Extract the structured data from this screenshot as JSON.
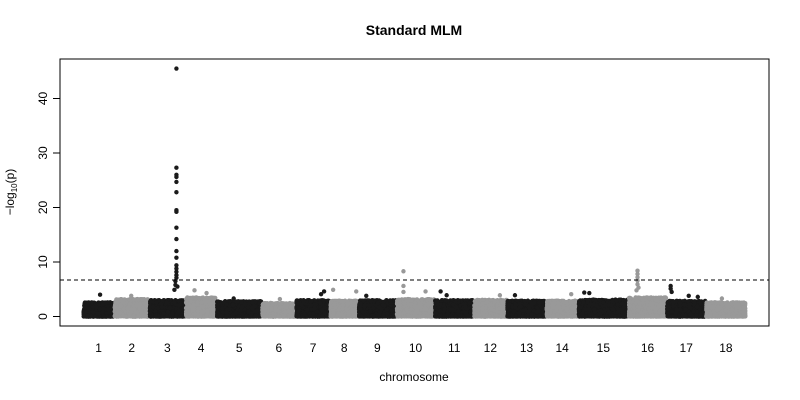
{
  "chart_data": {
    "type": "scatter",
    "subtype": "manhattan",
    "title": "Standard MLM",
    "xlabel": "chromosome",
    "ylabel": {
      "prefix": "−log",
      "subscript": "10",
      "suffix": "(p)"
    },
    "ylim": [
      0,
      47
    ],
    "yticks": [
      0,
      10,
      20,
      30,
      40
    ],
    "grid": false,
    "legend": "none",
    "threshold": {
      "value": 6.7,
      "style": "dashed",
      "color": "#000000"
    },
    "colors": {
      "odd": "#1a1a1a",
      "even": "#999999",
      "threshold": "#000000"
    },
    "chromosomes": [
      {
        "label": "1",
        "start": 0,
        "end": 31,
        "base_max": 2.6,
        "peaks": [
          [
            17,
            4.0
          ]
        ]
      },
      {
        "label": "2",
        "start": 31,
        "end": 66,
        "base_max": 3.2,
        "peaks": [
          [
            48,
            3.8
          ]
        ]
      },
      {
        "label": "3",
        "start": 66,
        "end": 102,
        "base_max": 3.0,
        "peaks": [
          [
            93,
            45.5
          ],
          [
            93,
            27.3
          ],
          [
            93,
            26.0
          ],
          [
            93,
            25.6
          ],
          [
            93,
            24.7
          ],
          [
            93,
            22.8
          ],
          [
            93,
            19.5
          ],
          [
            93,
            19.2
          ],
          [
            93,
            16.3
          ],
          [
            93,
            14.2
          ],
          [
            93,
            12.0
          ],
          [
            93,
            10.8
          ],
          [
            93,
            9.4
          ],
          [
            93,
            8.8
          ],
          [
            93,
            8.2
          ],
          [
            93,
            7.6
          ],
          [
            93,
            7.1
          ],
          [
            92,
            6.5
          ],
          [
            92,
            5.8
          ],
          [
            94,
            5.5
          ],
          [
            91,
            4.9
          ]
        ]
      },
      {
        "label": "4",
        "start": 102,
        "end": 133,
        "base_max": 3.5,
        "peaks": [
          [
            111,
            4.8
          ],
          [
            123,
            4.3
          ]
        ]
      },
      {
        "label": "5",
        "start": 133,
        "end": 178,
        "base_max": 2.8,
        "peaks": [
          [
            150,
            3.3
          ]
        ]
      },
      {
        "label": "6",
        "start": 178,
        "end": 212,
        "base_max": 2.5,
        "peaks": [
          [
            196,
            3.2
          ]
        ]
      },
      {
        "label": "7",
        "start": 212,
        "end": 246,
        "base_max": 3.0,
        "peaks": [
          [
            240,
            4.6
          ],
          [
            237,
            4.1
          ]
        ]
      },
      {
        "label": "8",
        "start": 246,
        "end": 274,
        "base_max": 2.9,
        "peaks": [
          [
            249,
            4.9
          ],
          [
            272,
            4.6
          ]
        ]
      },
      {
        "label": "9",
        "start": 274,
        "end": 312,
        "base_max": 3.0,
        "peaks": [
          [
            282,
            3.8
          ]
        ]
      },
      {
        "label": "10",
        "start": 312,
        "end": 350,
        "base_max": 3.2,
        "peaks": [
          [
            319,
            8.3
          ],
          [
            319,
            5.6
          ],
          [
            319,
            4.5
          ],
          [
            341,
            4.6
          ]
        ]
      },
      {
        "label": "11",
        "start": 350,
        "end": 389,
        "base_max": 3.0,
        "peaks": [
          [
            356,
            4.6
          ],
          [
            362,
            3.9
          ]
        ]
      },
      {
        "label": "12",
        "start": 389,
        "end": 422,
        "base_max": 3.1,
        "peaks": [
          [
            415,
            3.9
          ]
        ]
      },
      {
        "label": "13",
        "start": 422,
        "end": 461,
        "base_max": 2.9,
        "peaks": [
          [
            430,
            3.9
          ]
        ]
      },
      {
        "label": "14",
        "start": 461,
        "end": 493,
        "base_max": 2.9,
        "peaks": [
          [
            486,
            4.1
          ]
        ]
      },
      {
        "label": "15",
        "start": 493,
        "end": 543,
        "base_max": 3.1,
        "peaks": [
          [
            499,
            4.4
          ],
          [
            504,
            4.3
          ]
        ]
      },
      {
        "label": "16",
        "start": 543,
        "end": 581,
        "base_max": 3.5,
        "peaks": [
          [
            552,
            8.4
          ],
          [
            552,
            7.8
          ],
          [
            552,
            7.2
          ],
          [
            552,
            6.6
          ],
          [
            552,
            5.9
          ],
          [
            553,
            5.3
          ],
          [
            551,
            4.8
          ]
        ]
      },
      {
        "label": "17",
        "start": 581,
        "end": 620,
        "base_max": 2.9,
        "peaks": [
          [
            585,
            5.6
          ],
          [
            585,
            5.1
          ],
          [
            586,
            4.5
          ],
          [
            603,
            3.8
          ],
          [
            612,
            3.6
          ]
        ]
      },
      {
        "label": "18",
        "start": 620,
        "end": 660,
        "base_max": 2.6,
        "peaks": [
          [
            636,
            3.3
          ]
        ]
      }
    ]
  }
}
